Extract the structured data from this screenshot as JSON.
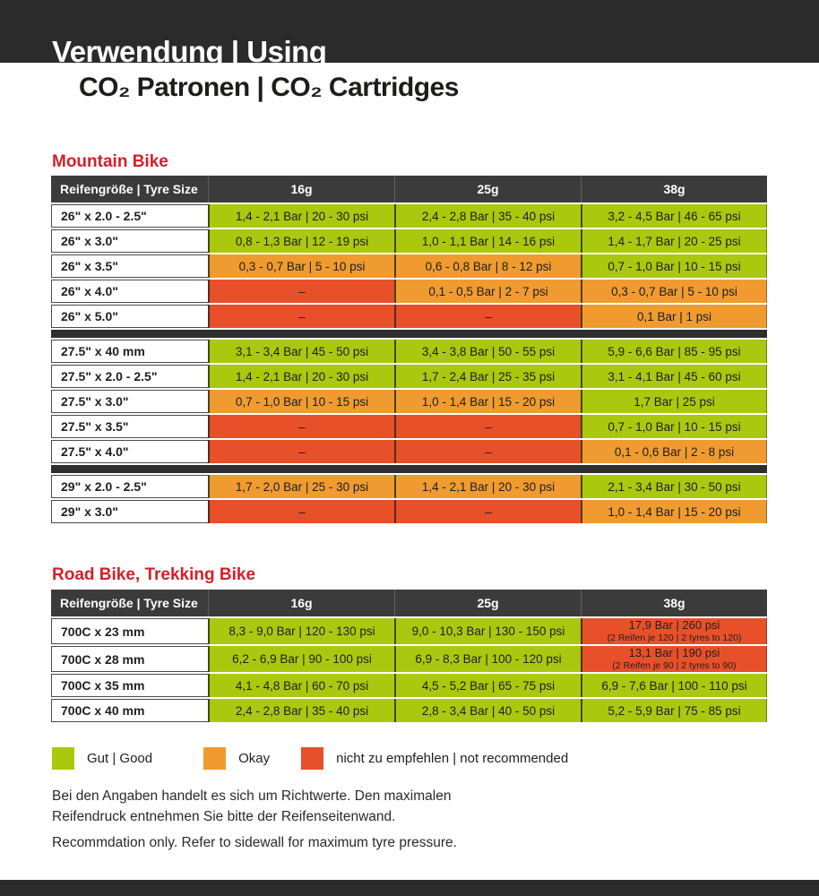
{
  "header": {
    "line1": "Verwendung | Using",
    "line2": "CO₂ Patronen | CO₂ Cartridges"
  },
  "legend": {
    "colors": {
      "good": "#aac80e",
      "okay": "#ef9b2f",
      "bad": "#e8502a"
    },
    "items": [
      {
        "status": "good",
        "label": "Gut | Good"
      },
      {
        "status": "okay",
        "label": "Okay"
      },
      {
        "status": "bad",
        "label": "nicht zu empfehlen | not recommended"
      }
    ]
  },
  "footnotes": {
    "de": "Bei den Angaben handelt es sich um Richtwerte. Den maximalen\nReifendruck entnehmen Sie bitte der Reifenseitenwand.",
    "en": "Recommdation only. Refer to sidewall for maximum tyre pressure."
  },
  "tables": [
    {
      "title": "Mountain Bike",
      "headers": [
        "Reifengröße | Tyre Size",
        "16g",
        "25g",
        "38g"
      ],
      "sections": [
        {
          "rows": [
            {
              "label": "26\" x 2.0 - 2.5\"",
              "cells": [
                {
                  "text": "1,4 - 2,1 Bar | 20 - 30 psi",
                  "status": "good"
                },
                {
                  "text": "2,4 - 2,8 Bar | 35 - 40 psi",
                  "status": "good"
                },
                {
                  "text": "3,2 - 4,5 Bar | 46 - 65 psi",
                  "status": "good"
                }
              ]
            },
            {
              "label": "26\" x 3.0\"",
              "cells": [
                {
                  "text": "0,8 - 1,3 Bar | 12 - 19 psi",
                  "status": "good"
                },
                {
                  "text": "1,0 - 1,1 Bar | 14 - 16 psi",
                  "status": "good"
                },
                {
                  "text": "1,4 - 1,7 Bar | 20 - 25 psi",
                  "status": "good"
                }
              ]
            },
            {
              "label": "26\" x 3.5\"",
              "cells": [
                {
                  "text": "0,3 - 0,7 Bar | 5 - 10 psi",
                  "status": "okay"
                },
                {
                  "text": "0,6 - 0,8 Bar | 8 - 12 psi",
                  "status": "okay"
                },
                {
                  "text": "0,7 - 1,0 Bar | 10 - 15 psi",
                  "status": "good"
                }
              ]
            },
            {
              "label": "26\" x 4.0\"",
              "cells": [
                {
                  "text": "–",
                  "status": "bad"
                },
                {
                  "text": "0,1 - 0,5 Bar | 2 - 7 psi",
                  "status": "okay"
                },
                {
                  "text": "0,3 - 0,7 Bar | 5 - 10 psi",
                  "status": "okay"
                }
              ]
            },
            {
              "label": "26\" x 5.0\"",
              "cells": [
                {
                  "text": "–",
                  "status": "bad"
                },
                {
                  "text": "–",
                  "status": "bad"
                },
                {
                  "text": "0,1 Bar | 1 psi",
                  "status": "okay"
                }
              ]
            }
          ]
        },
        {
          "rows": [
            {
              "label": "27.5\" x 40 mm",
              "cells": [
                {
                  "text": "3,1 - 3,4 Bar | 45 - 50 psi",
                  "status": "good"
                },
                {
                  "text": "3,4 - 3,8 Bar | 50 - 55 psi",
                  "status": "good"
                },
                {
                  "text": "5,9 - 6,6 Bar | 85 - 95 psi",
                  "status": "good"
                }
              ]
            },
            {
              "label": "27.5\" x 2.0 - 2.5\"",
              "cells": [
                {
                  "text": "1,4 - 2,1 Bar | 20 - 30 psi",
                  "status": "good"
                },
                {
                  "text": "1,7 - 2,4 Bar | 25 - 35 psi",
                  "status": "good"
                },
                {
                  "text": "3,1 - 4,1 Bar | 45 - 60 psi",
                  "status": "good"
                }
              ]
            },
            {
              "label": "27.5\" x 3.0\"",
              "cells": [
                {
                  "text": "0,7 - 1,0 Bar | 10 - 15 psi",
                  "status": "okay"
                },
                {
                  "text": "1,0 - 1,4 Bar | 15 - 20 psi",
                  "status": "okay"
                },
                {
                  "text": "1,7 Bar | 25 psi",
                  "status": "good"
                }
              ]
            },
            {
              "label": "27.5\" x 3.5\"",
              "cells": [
                {
                  "text": "–",
                  "status": "bad"
                },
                {
                  "text": "–",
                  "status": "bad"
                },
                {
                  "text": "0,7 - 1,0 Bar | 10 - 15 psi",
                  "status": "good"
                }
              ]
            },
            {
              "label": "27.5\" x 4.0\"",
              "cells": [
                {
                  "text": "–",
                  "status": "bad"
                },
                {
                  "text": "–",
                  "status": "bad"
                },
                {
                  "text": "0,1 - 0,6 Bar | 2 - 8 psi",
                  "status": "okay"
                }
              ]
            }
          ]
        },
        {
          "rows": [
            {
              "label": "29\" x 2.0 - 2.5\"",
              "cells": [
                {
                  "text": "1,7 - 2,0 Bar | 25 - 30 psi",
                  "status": "okay"
                },
                {
                  "text": "1,4 - 2,1 Bar | 20 - 30 psi",
                  "status": "okay"
                },
                {
                  "text": "2,1 - 3,4 Bar | 30 - 50 psi",
                  "status": "good"
                }
              ]
            },
            {
              "label": "29\" x 3.0\"",
              "cells": [
                {
                  "text": "–",
                  "status": "bad"
                },
                {
                  "text": "–",
                  "status": "bad"
                },
                {
                  "text": "1,0 - 1,4 Bar | 15 - 20 psi",
                  "status": "okay"
                }
              ]
            }
          ]
        }
      ]
    },
    {
      "title": "Road Bike, Trekking Bike",
      "headers": [
        "Reifengröße | Tyre Size",
        "16g",
        "25g",
        "38g"
      ],
      "sections": [
        {
          "rows": [
            {
              "label": "700C x 23 mm",
              "cells": [
                {
                  "text": "8,3 - 9,0 Bar | 120 - 130 psi",
                  "status": "good"
                },
                {
                  "text": "9,0 - 10,3 Bar | 130 - 150 psi",
                  "status": "good"
                },
                {
                  "text": "17,9 Bar | 260 psi",
                  "sub": "(2 Reifen je 120 | 2 tyres to 120)",
                  "status": "bad"
                }
              ]
            },
            {
              "label": "700C x 28 mm",
              "cells": [
                {
                  "text": "6,2 - 6,9 Bar | 90 - 100 psi",
                  "status": "good"
                },
                {
                  "text": "6,9 - 8,3 Bar | 100 - 120 psi",
                  "status": "good"
                },
                {
                  "text": "13,1 Bar | 190 psi",
                  "sub": "(2 Reifen je 90 | 2 tyres to 90)",
                  "status": "bad"
                }
              ]
            },
            {
              "label": "700C x 35 mm",
              "cells": [
                {
                  "text": "4,1 - 4,8 Bar | 60 - 70 psi",
                  "status": "good"
                },
                {
                  "text": "4,5 - 5,2 Bar | 65 - 75 psi",
                  "status": "good"
                },
                {
                  "text": "6,9 - 7,6 Bar | 100 - 110 psi",
                  "status": "good"
                }
              ]
            },
            {
              "label": "700C x 40 mm",
              "cells": [
                {
                  "text": "2,4 - 2,8 Bar | 35 - 40 psi",
                  "status": "good"
                },
                {
                  "text": "2,8 - 3,4 Bar | 40 - 50 psi",
                  "status": "good"
                },
                {
                  "text": "5,2 - 5,9 Bar | 75 - 85 psi",
                  "status": "good"
                }
              ]
            }
          ]
        }
      ]
    }
  ]
}
